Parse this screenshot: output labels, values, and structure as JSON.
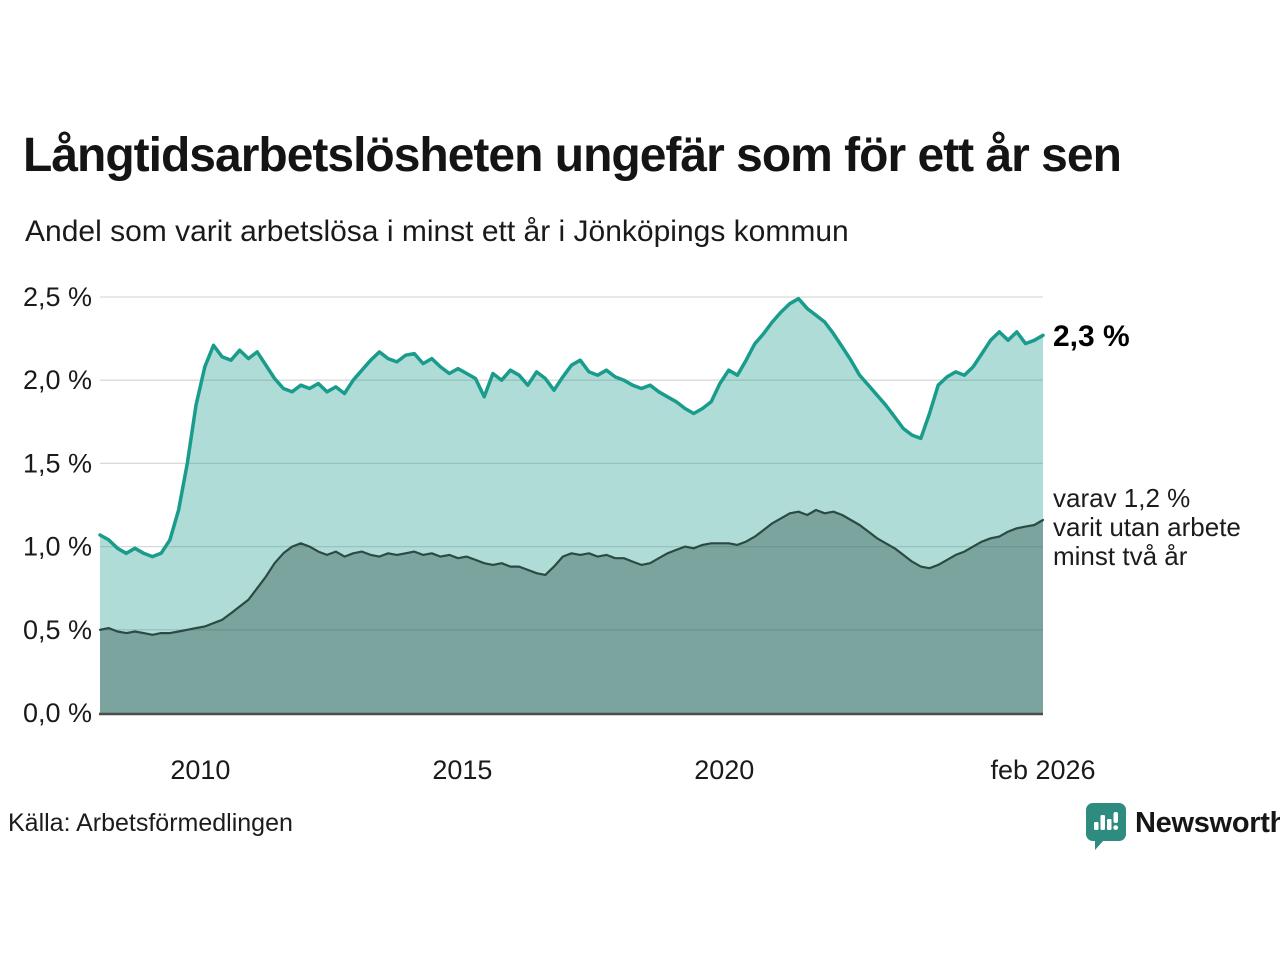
{
  "header": {
    "title": "Långtidsarbetslösheten ungefär som för ett år sen",
    "subtitle": "Andel som varit arbetslösa i minst ett år i Jönköpings kommun"
  },
  "chart_data": {
    "type": "area",
    "title": "Långtidsarbetslösheten ungefär som för ett år sen",
    "subtitle": "Andel som varit arbetslösa i minst ett år i Jönköpings kommun",
    "x_start": "feb 2008",
    "x_end": "feb 2026",
    "step_months": 2,
    "total_months": 216,
    "ylim": [
      0,
      2.5
    ],
    "grid": true,
    "colors": {
      "accent_teal": "#1a9c8c",
      "dark_teal": "#2b4a42",
      "gridline": "#d9d9d9",
      "axis": "#4b4b4b",
      "text": "#1a1a1a",
      "brand_teal": "#2e8b80"
    },
    "y_ticks": [
      {
        "value": 0.0,
        "label": "0,0 %"
      },
      {
        "value": 0.5,
        "label": "0,5 %"
      },
      {
        "value": 1.0,
        "label": "1,0 %"
      },
      {
        "value": 1.5,
        "label": "1,5 %"
      },
      {
        "value": 2.0,
        "label": "2,0 %"
      },
      {
        "value": 2.5,
        "label": "2,5 %"
      }
    ],
    "x_ticks": [
      {
        "label": "2010",
        "month": 23
      },
      {
        "label": "2015",
        "month": 83
      },
      {
        "label": "2020",
        "month": 143
      },
      {
        "label": "feb 2026",
        "month": 216
      }
    ],
    "series": [
      {
        "name": "Arbetslösa minst ett år",
        "color": "#1a9c8c",
        "fill": "rgba(26,156,140,0.35)",
        "stroke_width": 3.5,
        "end_value_label": "2,3 %",
        "values": [
          1.07,
          1.04,
          0.99,
          0.96,
          0.99,
          0.96,
          0.94,
          0.96,
          1.04,
          1.22,
          1.5,
          1.85,
          2.08,
          2.21,
          2.14,
          2.12,
          2.18,
          2.13,
          2.17,
          2.09,
          2.01,
          1.95,
          1.93,
          1.97,
          1.95,
          1.98,
          1.93,
          1.96,
          1.92,
          2.0,
          2.06,
          2.12,
          2.17,
          2.13,
          2.11,
          2.15,
          2.16,
          2.1,
          2.13,
          2.08,
          2.04,
          2.07,
          2.04,
          2.01,
          1.9,
          2.04,
          2.0,
          2.06,
          2.03,
          1.97,
          2.05,
          2.01,
          1.94,
          2.02,
          2.09,
          2.12,
          2.05,
          2.03,
          2.06,
          2.02,
          2.0,
          1.97,
          1.95,
          1.97,
          1.93,
          1.9,
          1.87,
          1.83,
          1.8,
          1.83,
          1.87,
          1.98,
          2.06,
          2.03,
          2.12,
          2.22,
          2.28,
          2.35,
          2.41,
          2.46,
          2.49,
          2.43,
          2.39,
          2.35,
          2.28,
          2.2,
          2.12,
          2.03,
          1.97,
          1.91,
          1.85,
          1.78,
          1.71,
          1.67,
          1.65,
          1.8,
          1.97,
          2.02,
          2.05,
          2.03,
          2.08,
          2.16,
          2.24,
          2.29,
          2.24,
          2.29,
          2.22,
          2.24,
          2.27
        ]
      },
      {
        "name": "Arbetslösa minst två år",
        "color": "#2b4a42",
        "fill": "rgba(43,74,66,0.38)",
        "stroke_width": 2.2,
        "end_value_label": "1,2 %",
        "values": [
          0.5,
          0.51,
          0.49,
          0.48,
          0.49,
          0.48,
          0.47,
          0.48,
          0.48,
          0.49,
          0.5,
          0.51,
          0.52,
          0.54,
          0.56,
          0.6,
          0.64,
          0.68,
          0.75,
          0.82,
          0.9,
          0.96,
          1.0,
          1.02,
          1.0,
          0.97,
          0.95,
          0.97,
          0.94,
          0.96,
          0.97,
          0.95,
          0.94,
          0.96,
          0.95,
          0.96,
          0.97,
          0.95,
          0.96,
          0.94,
          0.95,
          0.93,
          0.94,
          0.92,
          0.9,
          0.89,
          0.9,
          0.88,
          0.88,
          0.86,
          0.84,
          0.83,
          0.88,
          0.94,
          0.96,
          0.95,
          0.96,
          0.94,
          0.95,
          0.93,
          0.93,
          0.91,
          0.89,
          0.9,
          0.93,
          0.96,
          0.98,
          1.0,
          0.99,
          1.01,
          1.02,
          1.02,
          1.02,
          1.01,
          1.03,
          1.06,
          1.1,
          1.14,
          1.17,
          1.2,
          1.21,
          1.19,
          1.22,
          1.2,
          1.21,
          1.19,
          1.16,
          1.13,
          1.09,
          1.05,
          1.02,
          0.99,
          0.95,
          0.91,
          0.88,
          0.87,
          0.89,
          0.92,
          0.95,
          0.97,
          1.0,
          1.03,
          1.05,
          1.06,
          1.09,
          1.11,
          1.12,
          1.13,
          1.16
        ]
      }
    ],
    "annotations": {
      "end_label": "2,3 %",
      "secondary": "varav 1,2 %\nvarit utan arbete\nminst två år"
    },
    "legend_position": "annotations-right"
  },
  "footer": {
    "source": "Källa: Arbetsförmedlingen",
    "brand": "Newsworthy"
  }
}
